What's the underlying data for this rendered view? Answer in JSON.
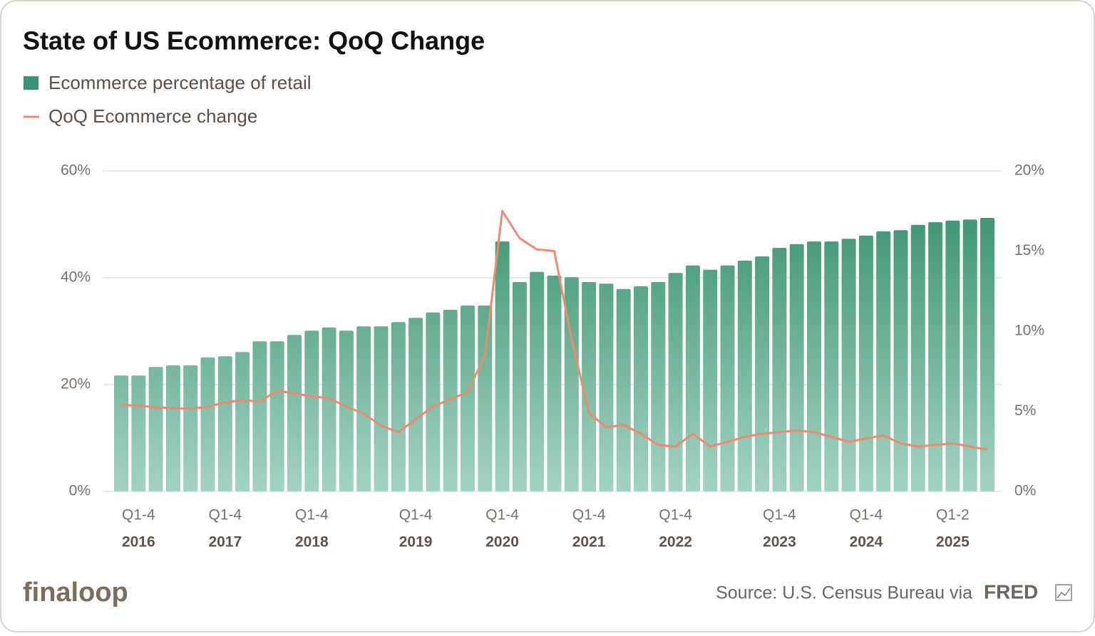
{
  "chart_data": {
    "type": "bar",
    "title": "State of US Ecommerce: QoQ Change",
    "categories": [
      null,
      "2016",
      null,
      null,
      null,
      null,
      "2017",
      null,
      null,
      null,
      null,
      "2018",
      null,
      null,
      null,
      null,
      null,
      "2019",
      null,
      null,
      null,
      null,
      "2020",
      null,
      null,
      null,
      null,
      "2021",
      null,
      null,
      null,
      null,
      "2022",
      null,
      null,
      null,
      null,
      null,
      "2023",
      null,
      null,
      null,
      null,
      "2024",
      null,
      null,
      null,
      null,
      "2025",
      null,
      null
    ],
    "category_sublabels": [
      null,
      "Q1-4",
      null,
      null,
      null,
      null,
      "Q1-4",
      null,
      null,
      null,
      null,
      "Q1-4",
      null,
      null,
      null,
      null,
      null,
      "Q1-4",
      null,
      null,
      null,
      null,
      "Q1-4",
      null,
      null,
      null,
      null,
      "Q1-4",
      null,
      null,
      null,
      null,
      "Q1-4",
      null,
      null,
      null,
      null,
      null,
      "Q1-4",
      null,
      null,
      null,
      null,
      "Q1-4",
      null,
      null,
      null,
      null,
      "Q1-2",
      null,
      null
    ],
    "series": [
      {
        "name": "Ecommerce percentage of retail",
        "type": "bar",
        "color": "#3a9471",
        "values": [
          21.7,
          21.7,
          23.3,
          23.6,
          23.6,
          25.1,
          25.3,
          26.1,
          28.1,
          28.1,
          29.3,
          30.1,
          30.7,
          30.1,
          30.9,
          30.9,
          31.7,
          32.5,
          33.5,
          34.0,
          34.8,
          34.8,
          46.8,
          39.2,
          41.1,
          40.4,
          40.1,
          39.2,
          38.9,
          37.9,
          38.4,
          39.2,
          40.9,
          42.3,
          41.5,
          42.3,
          43.2,
          44.0,
          45.6,
          46.3,
          46.8,
          46.8,
          47.3,
          47.9,
          48.7,
          48.9,
          49.9,
          50.4,
          50.7,
          50.9,
          51.2
        ]
      },
      {
        "name": "QoQ Ecommerce change",
        "type": "line",
        "axis": "y2",
        "color": "#ec8b6f",
        "values": [
          5.4,
          5.35,
          5.25,
          5.2,
          5.15,
          5.3,
          5.55,
          5.7,
          5.6,
          6.3,
          6.1,
          5.95,
          5.8,
          5.3,
          4.85,
          4.1,
          3.7,
          4.5,
          5.3,
          5.75,
          6.2,
          8.5,
          17.5,
          15.8,
          15.1,
          15.0,
          9.5,
          4.9,
          4.0,
          4.15,
          3.6,
          2.9,
          2.8,
          3.6,
          2.8,
          3.1,
          3.4,
          3.6,
          3.7,
          3.8,
          3.7,
          3.4,
          3.1,
          3.3,
          3.5,
          3.0,
          2.8,
          2.9,
          3.0,
          2.8,
          2.6
        ]
      }
    ],
    "ylim": [
      0,
      60
    ],
    "yticks": [
      {
        "value": 0,
        "label": "0%"
      },
      {
        "value": 20,
        "label": "20%"
      },
      {
        "value": 40,
        "label": "40%"
      },
      {
        "value": 60,
        "label": "60%"
      }
    ],
    "y2lim": [
      0,
      20
    ],
    "y2ticks": [
      {
        "value": 0,
        "label": "0%"
      },
      {
        "value": 5,
        "label": "5%"
      },
      {
        "value": 10,
        "label": "10%"
      },
      {
        "value": 15,
        "label": "15%"
      },
      {
        "value": 20,
        "label": "20%"
      }
    ],
    "grid": true
  },
  "footer": {
    "logo": "finaloop",
    "source": "Source: U.S. Census Bureau via",
    "source_brand": "FRED"
  }
}
